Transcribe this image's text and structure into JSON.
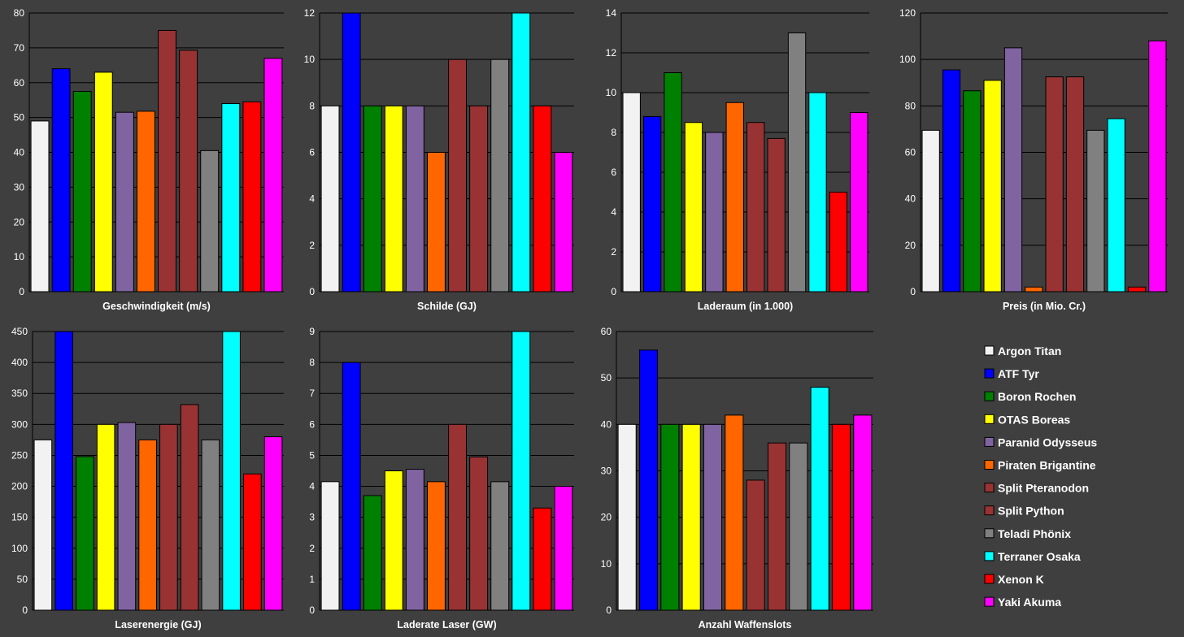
{
  "legend": {
    "items": [
      {
        "name": "Argon Titan",
        "color": "#f2f2f2"
      },
      {
        "name": "ATF Tyr",
        "color": "#0000ff"
      },
      {
        "name": "Boron Rochen",
        "color": "#008000"
      },
      {
        "name": "OTAS Boreas",
        "color": "#ffff00"
      },
      {
        "name": "Paranid Odysseus",
        "color": "#8064a2"
      },
      {
        "name": "Piraten Brigantine",
        "color": "#ff6600"
      },
      {
        "name": "Split Pteranodon",
        "color": "#993333"
      },
      {
        "name": "Split Python",
        "color": "#993333"
      },
      {
        "name": "Teladi Phönix",
        "color": "#808080"
      },
      {
        "name": "Terraner Osaka",
        "color": "#00ffff"
      },
      {
        "name": "Xenon K",
        "color": "#ff0000"
      },
      {
        "name": "Yaki Akuma",
        "color": "#ff00ff"
      }
    ]
  },
  "chart_data": [
    {
      "type": "bar",
      "xlabel": "Geschwindigkeit (m/s)",
      "ylim": [
        0,
        80
      ],
      "yticks": [
        0,
        10,
        20,
        30,
        40,
        50,
        60,
        70,
        80
      ],
      "categories": [
        "Argon Titan",
        "ATF Tyr",
        "Boron Rochen",
        "OTAS Boreas",
        "Paranid Odysseus",
        "Piraten Brigantine",
        "Split Pteranodon",
        "Split Python",
        "Teladi Phönix",
        "Terraner Osaka",
        "Xenon K",
        "Yaki Akuma"
      ],
      "values": [
        49,
        64,
        57.5,
        63,
        51.5,
        51.8,
        75,
        69.3,
        40.5,
        54,
        54.5,
        67
      ]
    },
    {
      "type": "bar",
      "xlabel": "Schilde (GJ)",
      "ylim": [
        0,
        12
      ],
      "yticks": [
        0,
        2,
        4,
        6,
        8,
        10,
        12
      ],
      "categories": [
        "Argon Titan",
        "ATF Tyr",
        "Boron Rochen",
        "OTAS Boreas",
        "Paranid Odysseus",
        "Piraten Brigantine",
        "Split Pteranodon",
        "Split Python",
        "Teladi Phönix",
        "Terraner Osaka",
        "Xenon K",
        "Yaki Akuma"
      ],
      "values": [
        8,
        12,
        8,
        8,
        8,
        6,
        10,
        8,
        10,
        12,
        8,
        6
      ]
    },
    {
      "type": "bar",
      "xlabel": "Laderaum (in 1.000)",
      "ylim": [
        0,
        14
      ],
      "yticks": [
        0,
        2,
        4,
        6,
        8,
        10,
        12,
        14
      ],
      "categories": [
        "Argon Titan",
        "ATF Tyr",
        "Boron Rochen",
        "OTAS Boreas",
        "Paranid Odysseus",
        "Piraten Brigantine",
        "Split Pteranodon",
        "Split Python",
        "Teladi Phönix",
        "Terraner Osaka",
        "Xenon K",
        "Yaki Akuma"
      ],
      "values": [
        10,
        8.8,
        11,
        8.5,
        8,
        9.5,
        8.5,
        7.7,
        13,
        10,
        5,
        9
      ]
    },
    {
      "type": "bar",
      "xlabel": "Preis (in Mio. Cr.)",
      "ylim": [
        0,
        120
      ],
      "yticks": [
        0,
        20,
        40,
        60,
        80,
        100,
        120
      ],
      "categories": [
        "Argon Titan",
        "ATF Tyr",
        "Boron Rochen",
        "OTAS Boreas",
        "Paranid Odysseus",
        "Piraten Brigantine",
        "Split Pteranodon",
        "Split Python",
        "Teladi Phönix",
        "Terraner Osaka",
        "Xenon K",
        "Yaki Akuma"
      ],
      "values": [
        69.5,
        95.5,
        86.5,
        91,
        105,
        2,
        92.5,
        92.5,
        69.5,
        74.5,
        2,
        108
      ]
    },
    {
      "type": "bar",
      "xlabel": "Laserenergie (GJ)",
      "ylim": [
        0,
        450
      ],
      "yticks": [
        0,
        50,
        100,
        150,
        200,
        250,
        300,
        350,
        400,
        450
      ],
      "categories": [
        "Argon Titan",
        "ATF Tyr",
        "Boron Rochen",
        "OTAS Boreas",
        "Paranid Odysseus",
        "Piraten Brigantine",
        "Split Pteranodon",
        "Split Python",
        "Teladi Phönix",
        "Terraner Osaka",
        "Xenon K",
        "Yaki Akuma"
      ],
      "values": [
        275,
        450,
        248,
        300,
        303,
        275,
        300,
        332,
        275,
        450,
        220,
        280
      ]
    },
    {
      "type": "bar",
      "xlabel": "Laderate Laser (GW)",
      "ylim": [
        0,
        9
      ],
      "yticks": [
        0,
        1,
        2,
        3,
        4,
        5,
        6,
        7,
        8,
        9
      ],
      "categories": [
        "Argon Titan",
        "ATF Tyr",
        "Boron Rochen",
        "OTAS Boreas",
        "Paranid Odysseus",
        "Piraten Brigantine",
        "Split Pteranodon",
        "Split Python",
        "Teladi Phönix",
        "Terraner Osaka",
        "Xenon K",
        "Yaki Akuma"
      ],
      "values": [
        4.15,
        8,
        3.7,
        4.5,
        4.55,
        4.15,
        6,
        4.95,
        4.15,
        9,
        3.3,
        4
      ]
    },
    {
      "type": "bar",
      "xlabel": "Anzahl Waffenslots",
      "ylim": [
        0,
        60
      ],
      "yticks": [
        0,
        10,
        20,
        30,
        40,
        50,
        60
      ],
      "categories": [
        "Argon Titan",
        "ATF Tyr",
        "Boron Rochen",
        "OTAS Boreas",
        "Paranid Odysseus",
        "Piraten Brigantine",
        "Split Pteranodon",
        "Split Python",
        "Teladi Phönix",
        "Terraner Osaka",
        "Xenon K",
        "Yaki Akuma"
      ],
      "values": [
        40,
        56,
        40,
        40,
        40,
        42,
        28,
        36,
        36,
        48,
        40,
        42
      ]
    }
  ]
}
